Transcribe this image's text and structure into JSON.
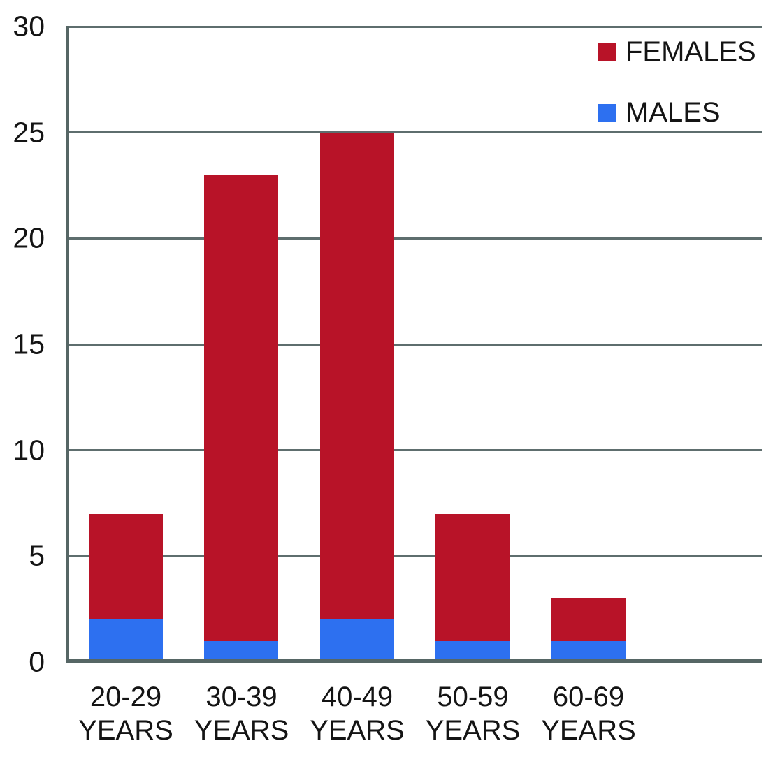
{
  "chart_data": {
    "type": "bar",
    "stacked": true,
    "title": "",
    "xlabel": "",
    "ylabel": "",
    "categories": [
      {
        "line1": "20-29",
        "line2": "YEARS"
      },
      {
        "line1": "30-39",
        "line2": "YEARS"
      },
      {
        "line1": "40-49",
        "line2": "YEARS"
      },
      {
        "line1": "50-59",
        "line2": "YEARS"
      },
      {
        "line1": "60-69",
        "line2": "YEARS"
      }
    ],
    "series": [
      {
        "name": "FEMALES",
        "color": "#B81328",
        "values": [
          5,
          22,
          23,
          6,
          2
        ]
      },
      {
        "name": "MALES",
        "color": "#2D70F0",
        "values": [
          2,
          1,
          2,
          1,
          1
        ]
      }
    ],
    "stack_order_bottom_to_top": [
      "MALES",
      "FEMALES"
    ],
    "stack_totals": [
      7,
      23,
      25,
      7,
      3
    ],
    "ylim": [
      0,
      30
    ],
    "yticks": [
      "0",
      "5",
      "10",
      "15",
      "20",
      "25",
      "30"
    ],
    "grid": true,
    "legend_position": "top-right",
    "colors": {
      "axis": "#566665",
      "gridline": "#5E6E6E",
      "text": "#141414",
      "background": "#FFFFFF"
    }
  }
}
